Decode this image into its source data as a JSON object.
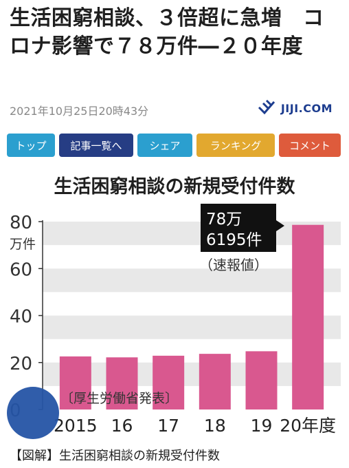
{
  "article": {
    "headline": "生活困窮相談、３倍超に急増　コロナ影響で７８万件―２０年度",
    "timestamp": "2021年10月25日20時43分"
  },
  "logo": {
    "text": "JIJI.COM",
    "icon": "jiji-logo-icon",
    "color": "#1d3d8f"
  },
  "nav": {
    "top": "トップ",
    "list": "記事一覧へ",
    "share": "シェア",
    "ranking": "ランキング",
    "comment": "コメント"
  },
  "caption": "【図解】生活困窮相談の新規受付件数",
  "colors": {
    "bar": "#d9588f",
    "grid_band": "#e8e8e8",
    "callout": "#111111"
  },
  "chart_data": {
    "type": "bar",
    "title": "生活困窮相談の新規受付件数",
    "ylabel": "万件",
    "categories": [
      "2015",
      "16",
      "17",
      "18",
      "19",
      "20年度"
    ],
    "values": [
      22.6,
      22.2,
      22.9,
      23.7,
      24.8,
      78.6195
    ],
    "ylim": [
      0,
      80
    ],
    "yticks": [
      "0",
      "20",
      "40",
      "60",
      "80"
    ],
    "source_note": "〔厚生労働省発表〕",
    "annotation": {
      "line1": "78万",
      "line2": "6195件",
      "note": "（速報値）"
    },
    "grid": "horizontal bands"
  }
}
